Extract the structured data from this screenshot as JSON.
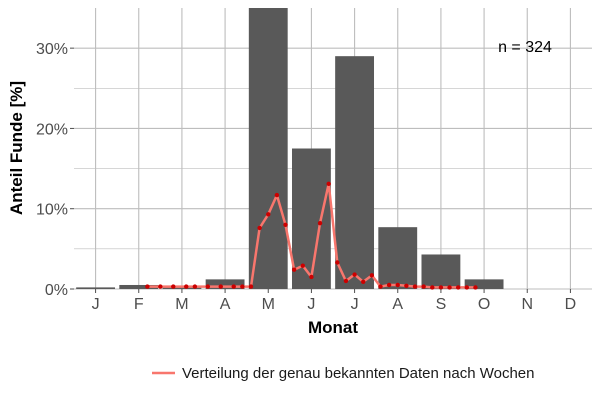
{
  "chart_data": {
    "type": "bar",
    "xlabel": "Monat",
    "ylabel": "Anteil Funde [%]",
    "categories": [
      "J",
      "F",
      "M",
      "A",
      "M",
      "J",
      "J",
      "A",
      "S",
      "O",
      "N",
      "D"
    ],
    "values": [
      0.2,
      0.5,
      0.3,
      1.2,
      35.0,
      17.5,
      29.0,
      7.7,
      4.3,
      1.2,
      0,
      0
    ],
    "ylim": [
      0,
      35
    ],
    "yticks": [
      0,
      10,
      20,
      30
    ],
    "ytick_labels": [
      "0%",
      "10%",
      "20%",
      "30%"
    ],
    "annotation": "n = 324",
    "grid": true,
    "legend": {
      "position": "bottom-right",
      "entries": [
        "Verteilung der genau bekannten Daten nach Wochen"
      ]
    },
    "line_series": {
      "name": "Verteilung der genau bekannten Daten nach Wochen",
      "x": [
        2.2,
        2.5,
        2.8,
        3.1,
        3.3,
        3.6,
        3.9,
        4.2,
        4.4,
        4.6,
        4.8,
        5.0,
        5.2,
        5.4,
        5.6,
        5.8,
        6.0,
        6.2,
        6.4,
        6.6,
        6.8,
        7.0,
        7.2,
        7.4,
        7.6,
        7.8,
        8.0,
        8.2,
        8.4,
        8.6,
        8.8,
        9.0,
        9.2,
        9.4,
        9.6,
        9.8
      ],
      "y": [
        0.3,
        0.3,
        0.3,
        0.3,
        0.3,
        0.3,
        0.3,
        0.3,
        0.3,
        0.3,
        7.6,
        9.3,
        11.7,
        8.0,
        2.4,
        2.9,
        1.5,
        8.2,
        13.1,
        3.3,
        1.0,
        1.8,
        0.9,
        1.7,
        0.3,
        0.5,
        0.5,
        0.4,
        0.3,
        0.3,
        0.2,
        0.2,
        0.2,
        0.2,
        0.2,
        0.2
      ]
    },
    "colors": {
      "bar": "#595959",
      "line": "#f8766d",
      "points": "#cc0000",
      "grid": "#bdbdbd"
    }
  }
}
